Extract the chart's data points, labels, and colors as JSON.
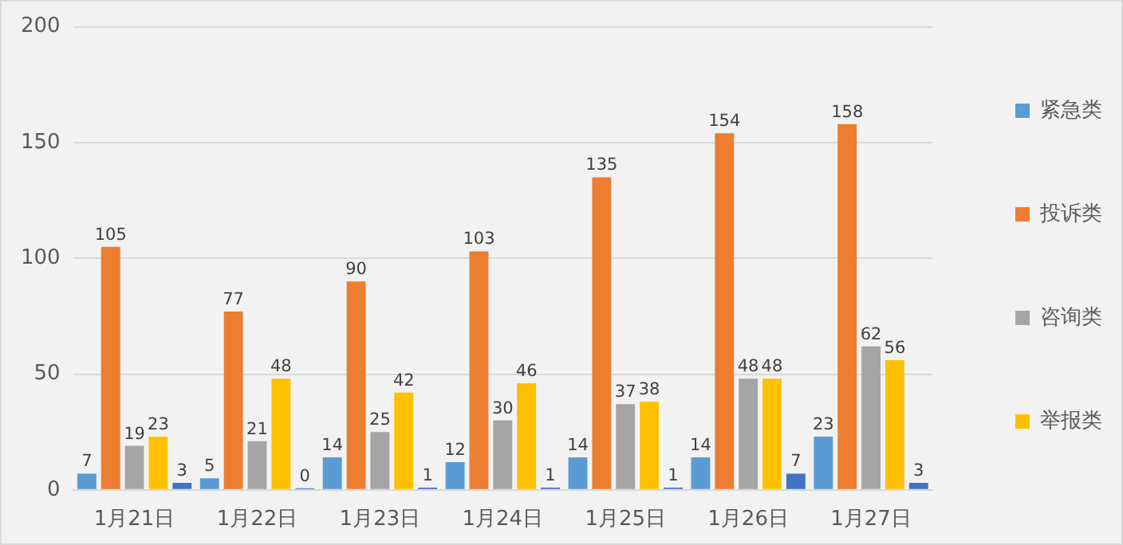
{
  "chart_data": {
    "type": "bar",
    "categories": [
      "1月21日",
      "1月22日",
      "1月23日",
      "1月24日",
      "1月25日",
      "1月26日",
      "1月27日"
    ],
    "series": [
      {
        "name": "紧急类",
        "color": "#5b9bd5",
        "values": [
          7,
          5,
          14,
          12,
          14,
          14,
          23
        ]
      },
      {
        "name": "投诉类",
        "color": "#ed7d31",
        "values": [
          105,
          77,
          90,
          103,
          135,
          154,
          158
        ]
      },
      {
        "name": "咨询类",
        "color": "#a5a5a5",
        "values": [
          19,
          21,
          25,
          30,
          37,
          48,
          62
        ]
      },
      {
        "name": "举报类",
        "color": "#ffc000",
        "values": [
          23,
          48,
          42,
          46,
          38,
          48,
          56
        ]
      },
      {
        "color": "#4472c4",
        "values": [
          3,
          0,
          1,
          1,
          1,
          7,
          3
        ]
      }
    ],
    "ylim": [
      0,
      200
    ],
    "yticks": [
      0,
      50,
      100,
      150,
      200
    ],
    "grid": "y",
    "legend": "right",
    "data_labels": true
  }
}
